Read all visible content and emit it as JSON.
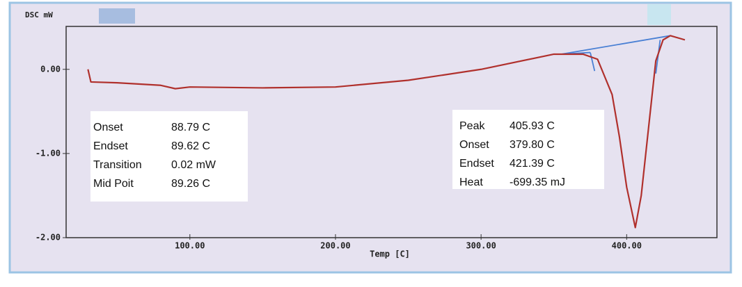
{
  "chart_data": {
    "type": "line",
    "y_label": "DSC mW",
    "x_label": "Temp [C]",
    "x": [
      30,
      32,
      50,
      80,
      90,
      100,
      150,
      200,
      250,
      300,
      350,
      370,
      380,
      390,
      395,
      400,
      405.93,
      410,
      415,
      420,
      425,
      430,
      440
    ],
    "values": [
      0.0,
      -0.15,
      -0.16,
      -0.19,
      -0.23,
      -0.21,
      -0.22,
      -0.21,
      -0.13,
      0.0,
      0.18,
      0.18,
      0.12,
      -0.3,
      -0.8,
      -1.4,
      -1.88,
      -1.5,
      -0.7,
      0.1,
      0.35,
      0.4,
      0.35
    ],
    "color": "#b0302c",
    "tangent_lines": [
      {
        "x": [
          355,
          430
        ],
        "values": [
          0.18,
          0.4
        ],
        "color": "#4a80d4"
      },
      {
        "x": [
          355,
          375
        ],
        "values": [
          0.18,
          0.2
        ],
        "color": "#4a80d4"
      },
      {
        "x": [
          375,
          378
        ],
        "values": [
          0.2,
          -0.02
        ],
        "color": "#4a80d4"
      },
      {
        "x": [
          420,
          423
        ],
        "values": [
          -0.05,
          0.35
        ],
        "color": "#4a80d4"
      }
    ],
    "xlim": [
      15,
      462
    ],
    "ylim": [
      -2.0,
      0.51
    ],
    "xticks": [
      {
        "value": 100,
        "label": "100.00"
      },
      {
        "value": 200,
        "label": "200.00"
      },
      {
        "value": 300,
        "label": "300.00"
      },
      {
        "value": 400,
        "label": "400.00"
      }
    ],
    "yticks": [
      {
        "value": 0,
        "label": "0.00"
      },
      {
        "value": -1,
        "label": "-1.00"
      },
      {
        "value": -2,
        "label": "-2.00"
      }
    ],
    "annotations": [
      {
        "rows": [
          [
            "Onset",
            "88.79 C"
          ],
          [
            "Endset",
            "89.62 C"
          ],
          [
            "Transition",
            "0.02  mW"
          ],
          [
            "Mid Poit",
            "89.26 C"
          ]
        ]
      },
      {
        "rows": [
          [
            "Peak",
            "405.93 C"
          ],
          [
            "Onset",
            "379.80 C"
          ],
          [
            "Endset",
            "421.39 C"
          ],
          [
            "Heat",
            "-699.35 mJ"
          ]
        ]
      }
    ]
  }
}
